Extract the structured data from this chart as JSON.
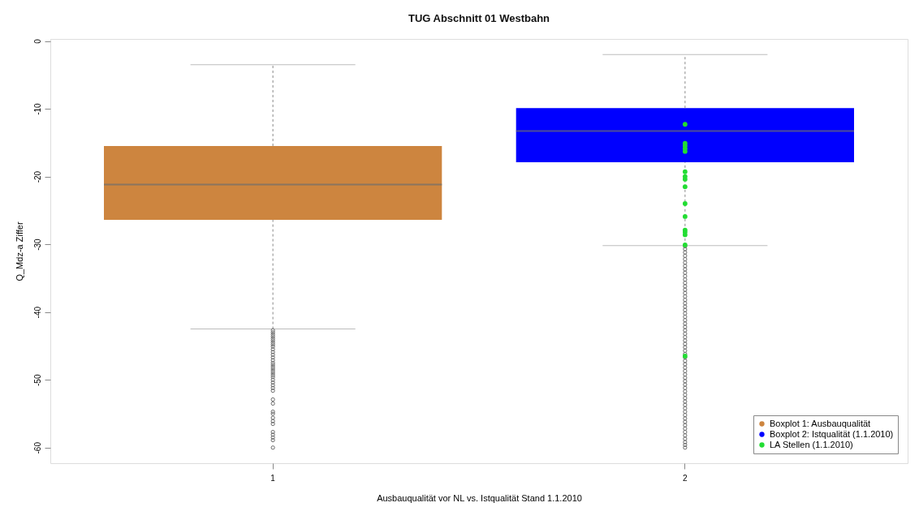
{
  "chart_data": {
    "type": "box",
    "title": "TUG Abschnitt 01 Westbahn",
    "xlabel": "Ausbauqualität vor NL vs. Istqualität Stand 1.1.2010",
    "ylabel": "Q_Mdz-a Ziffer",
    "categories": [
      "1",
      "2"
    ],
    "ylim": [
      -62.3,
      0.3
    ],
    "yticks": [
      0,
      -10,
      -20,
      -30,
      -40,
      -50,
      -60
    ],
    "legend": "bottom right",
    "series": [
      {
        "name": "Boxplot 1: Ausbauqualität",
        "color": "#cd853f",
        "boxes": [
          {
            "low": -42.5,
            "q1": -26.4,
            "median": -21.2,
            "q3": -15.5,
            "high": -3.5,
            "outliers": [
              -42.7,
              -43.0,
              -43.3,
              -43.6,
              -43.9,
              -44.2,
              -44.5,
              -44.8,
              -45.1,
              -45.5,
              -45.9,
              -46.3,
              -46.7,
              -47.1,
              -47.5,
              -47.8,
              -48.1,
              -48.4,
              -48.7,
              -49.0,
              -49.3,
              -49.6,
              -50.0,
              -50.4,
              -50.8,
              -51.2,
              -51.6,
              -52.9,
              -53.5,
              -54.7,
              -55.0,
              -55.6,
              -56.1,
              -56.5,
              -57.7,
              -58.1,
              -58.5,
              -58.9,
              -60.0
            ]
          },
          null
        ]
      },
      {
        "name": "Boxplot 2: Istqualität (1.1.2010)",
        "color": "#0000ff",
        "boxes": [
          null,
          {
            "low": -30.2,
            "q1": -17.9,
            "median": -13.3,
            "q3": -9.9,
            "high": -2.0,
            "outliers": [
              -30.3,
              -30.7,
              -31.2,
              -31.7,
              -32.2,
              -32.7,
              -33.2,
              -33.7,
              -34.2,
              -34.7,
              -35.2,
              -35.7,
              -36.2,
              -36.7,
              -37.2,
              -37.7,
              -38.2,
              -38.7,
              -39.2,
              -39.7,
              -40.2,
              -40.7,
              -41.2,
              -41.7,
              -42.2,
              -42.7,
              -43.2,
              -43.7,
              -44.2,
              -44.7,
              -45.2,
              -45.7,
              -46.2,
              -46.7,
              -47.2,
              -47.7,
              -48.2,
              -48.7,
              -49.2,
              -49.7,
              -50.2,
              -50.7,
              -51.2,
              -51.7,
              -52.2,
              -52.7,
              -53.2,
              -53.7,
              -54.2,
              -54.7,
              -55.2,
              -55.7,
              -56.2,
              -56.7,
              -57.2,
              -57.7,
              -58.2,
              -58.7,
              -59.2,
              -59.6,
              -60.0
            ]
          }
        ]
      },
      {
        "name": "LA Stellen (1.1.2010)",
        "type": "scatter",
        "color": "#22dd33",
        "marker": "circle",
        "x": [
          "2",
          "2",
          "2",
          "2",
          "2",
          "2",
          "2",
          "2",
          "2",
          "2",
          "2",
          "2",
          "2",
          "2",
          "2",
          "2"
        ],
        "values": [
          -12.3,
          -15.1,
          -15.5,
          -15.9,
          -16.3,
          -19.3,
          -20.0,
          -20.4,
          -21.5,
          -24.0,
          -25.9,
          -27.9,
          -28.2,
          -28.6,
          -30.1,
          -46.5
        ]
      }
    ]
  }
}
